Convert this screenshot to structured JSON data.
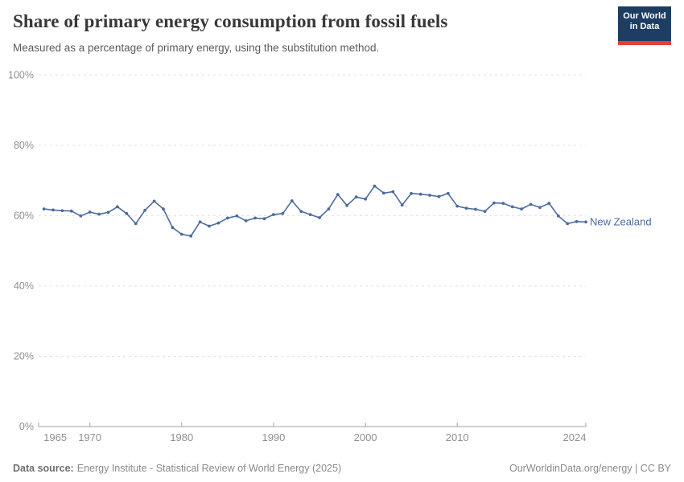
{
  "logo": {
    "line1": "Our World",
    "line2": "in Data",
    "bg_color": "#1d3d63",
    "accent_color": "#e63e36"
  },
  "chart_data": {
    "type": "line",
    "title": "Share of primary energy consumption from fossil fuels",
    "subtitle": "Measured as a percentage of primary energy, using the substitution method.",
    "xlabel": "",
    "ylabel": "",
    "ylim": [
      0,
      100
    ],
    "yticks": [
      0,
      20,
      40,
      60,
      80,
      100
    ],
    "ytick_labels": [
      "0%",
      "20%",
      "40%",
      "60%",
      "80%",
      "100%"
    ],
    "xticks": [
      1965,
      1970,
      1980,
      1990,
      2000,
      2010,
      2024
    ],
    "grid": "horizontal-dashed",
    "legend_position": "right-of-line",
    "x": [
      1965,
      1966,
      1967,
      1968,
      1969,
      1970,
      1971,
      1972,
      1973,
      1974,
      1975,
      1976,
      1977,
      1978,
      1979,
      1980,
      1981,
      1982,
      1983,
      1984,
      1985,
      1986,
      1987,
      1988,
      1989,
      1990,
      1991,
      1992,
      1993,
      1994,
      1995,
      1996,
      1997,
      1998,
      1999,
      2000,
      2001,
      2002,
      2003,
      2004,
      2005,
      2006,
      2007,
      2008,
      2009,
      2010,
      2011,
      2012,
      2013,
      2014,
      2015,
      2016,
      2017,
      2018,
      2019,
      2020,
      2021,
      2022,
      2023,
      2024
    ],
    "series": [
      {
        "name": "New Zealand",
        "color": "#4c6b9e",
        "values": [
          61.9,
          61.6,
          61.4,
          61.3,
          59.9,
          61.0,
          60.4,
          60.9,
          62.5,
          60.6,
          57.7,
          61.5,
          64.1,
          61.9,
          56.6,
          54.7,
          54.2,
          58.2,
          57.0,
          57.9,
          59.3,
          59.9,
          58.5,
          59.3,
          59.1,
          60.3,
          60.6,
          64.2,
          61.2,
          60.3,
          59.4,
          61.9,
          66.0,
          62.9,
          65.3,
          64.7,
          68.4,
          66.4,
          66.8,
          63.0,
          66.3,
          66.1,
          65.8,
          65.4,
          66.3,
          62.7,
          62.1,
          61.8,
          61.2,
          63.6,
          63.5,
          62.5,
          61.9,
          63.2,
          62.3,
          63.5,
          59.9,
          57.7,
          58.3,
          58.2
        ]
      }
    ]
  },
  "footer": {
    "source_label": "Data source:",
    "source_text": "Energy Institute - Statistical Review of World Energy (2025)",
    "credit": "OurWorldinData.org/energy | CC BY"
  }
}
